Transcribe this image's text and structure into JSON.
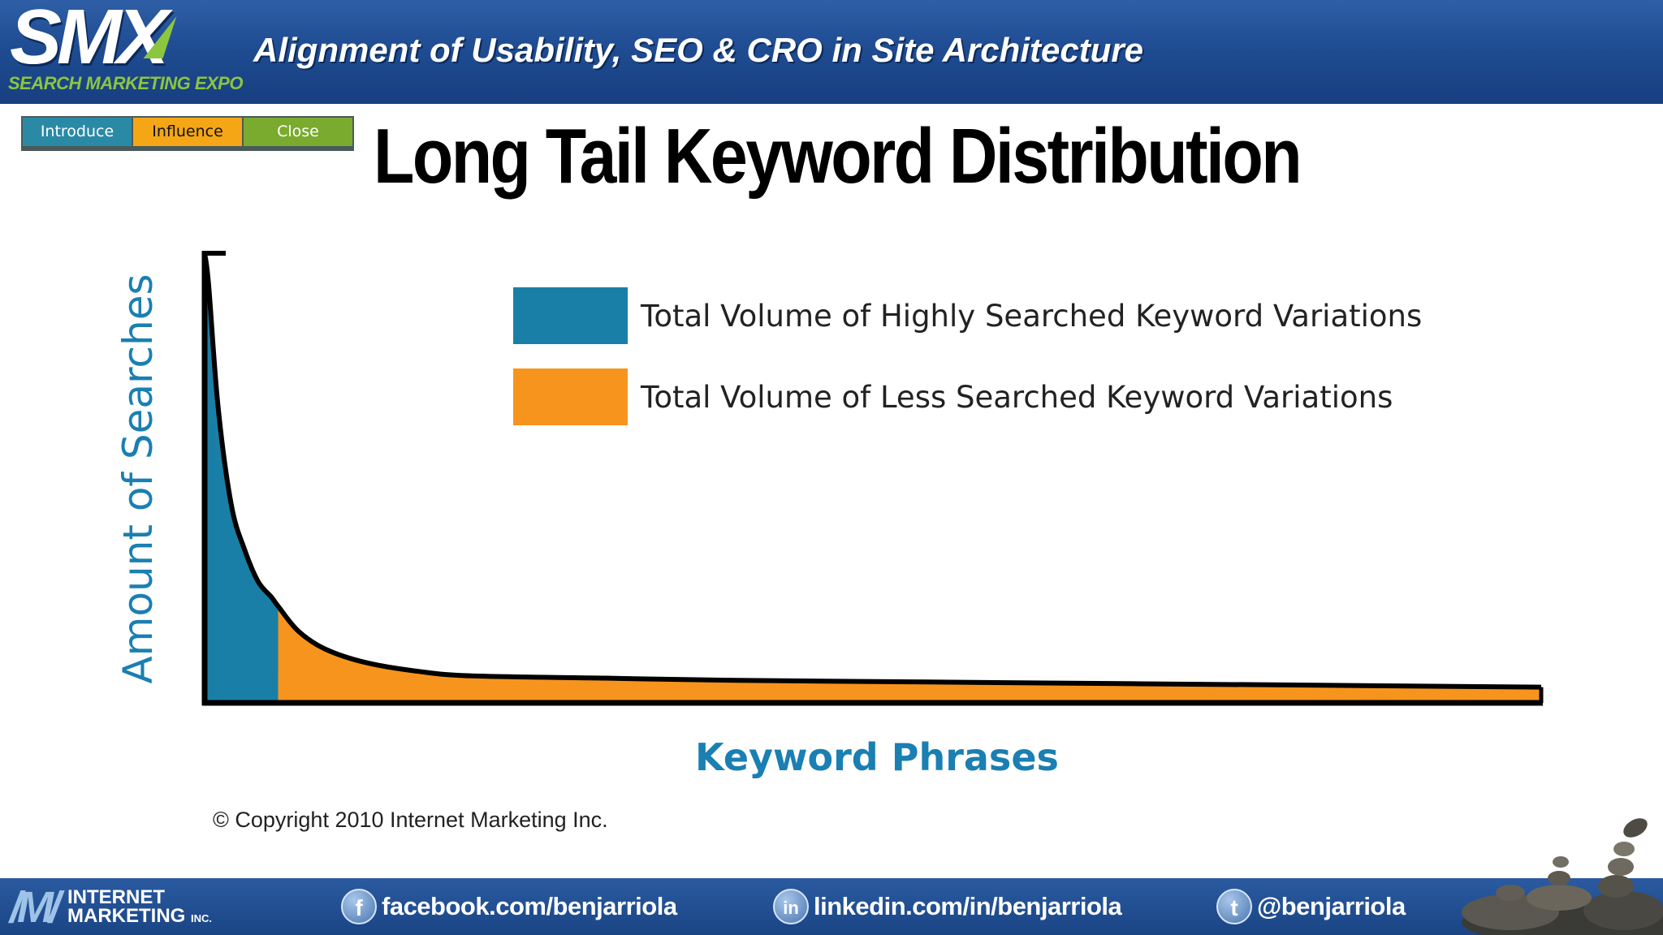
{
  "header": {
    "logo_text": "SMX",
    "logo_subtitle": "SEARCH MARKETING EXPO",
    "title": "Alignment of Usability, SEO & CRO in Site Architecture"
  },
  "stages": {
    "introduce": "Introduce",
    "influence": "Influence",
    "close": "Close"
  },
  "slide_title": "Long Tail Keyword Distribution",
  "chart_data": {
    "type": "area",
    "title": "",
    "xlabel": "Keyword Phrases",
    "ylabel": "Amount of Searches",
    "axis_ticks": false,
    "grid": false,
    "legend_position": "top-right",
    "x": [
      0,
      0.3,
      1,
      2,
      3,
      4,
      5,
      5.5,
      7,
      9,
      12,
      16,
      20,
      30,
      40,
      60,
      80,
      100
    ],
    "y": [
      100,
      93,
      66,
      44,
      34,
      27,
      23.5,
      21.5,
      16,
      12,
      9,
      7,
      6,
      5.5,
      5,
      4.5,
      4,
      3.5
    ],
    "xlim": [
      0,
      100
    ],
    "ylim": [
      0,
      100
    ],
    "split_x": 5.5,
    "series": [
      {
        "name": "Total Volume of Highly Searched Keyword Variations",
        "color": "#1a7fa6",
        "range": [
          0,
          5.5
        ]
      },
      {
        "name": "Total Volume of Less Searched Keyword Variations",
        "color": "#f7941d",
        "range": [
          5.5,
          100
        ]
      }
    ]
  },
  "copyright": "© Copyright 2010 Internet Marketing Inc.",
  "footer": {
    "brand_line1": "INTERNET",
    "brand_line2": "MARKETING",
    "brand_suffix": "INC.",
    "facebook": "facebook.com/benjarriola",
    "linkedin": "linkedin.com/in/benjarriola",
    "twitter": "@benjarriola",
    "facebook_icon": "f",
    "linkedin_icon": "in",
    "twitter_icon": "t"
  }
}
